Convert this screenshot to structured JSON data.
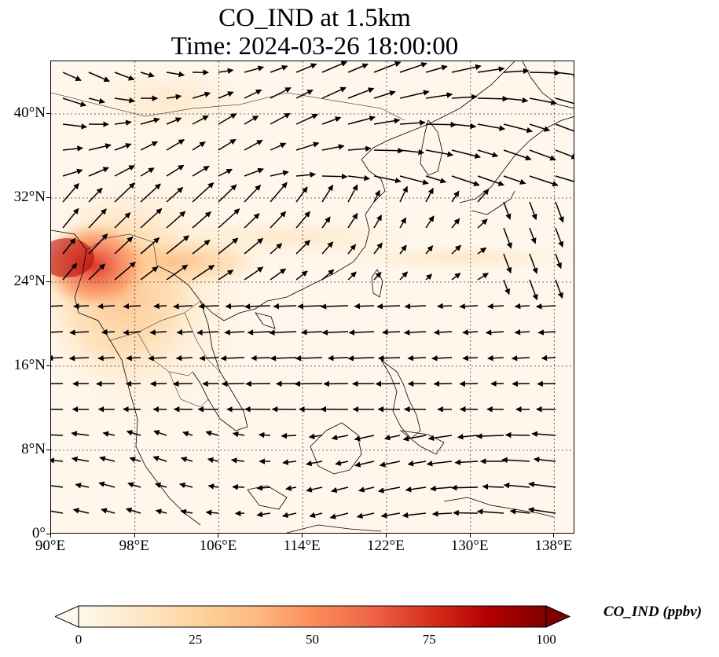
{
  "title_line1": "CO_IND at 1.5km",
  "title_line2": "Time: 2024-03-26 18:00:00",
  "map": {
    "projection": "PlateCarree",
    "lon_range": [
      90,
      140
    ],
    "lat_range": [
      0,
      45
    ],
    "gridlines": true,
    "coastlines": true,
    "borders": true,
    "background_color": "#fff7ec",
    "arrow_color": "#000000"
  },
  "axes": {
    "lat_ticks": [
      "0°",
      "8°N",
      "16°N",
      "24°N",
      "32°N",
      "40°N"
    ],
    "lon_ticks": [
      "90°E",
      "98°E",
      "106°E",
      "114°E",
      "122°E",
      "130°E",
      "138°E"
    ]
  },
  "colorbar": {
    "label": "CO_IND (ppbv)",
    "ticks": [
      "0",
      "25",
      "50",
      "75",
      "100"
    ],
    "cmap": "OrRd",
    "colors": [
      "#fff7ec",
      "#fee8c8",
      "#fdd49e",
      "#fdbb84",
      "#fc8d59",
      "#ef6548",
      "#d7301f",
      "#b30000",
      "#7f0000"
    ],
    "extend": "both",
    "range": [
      0,
      100
    ]
  }
}
